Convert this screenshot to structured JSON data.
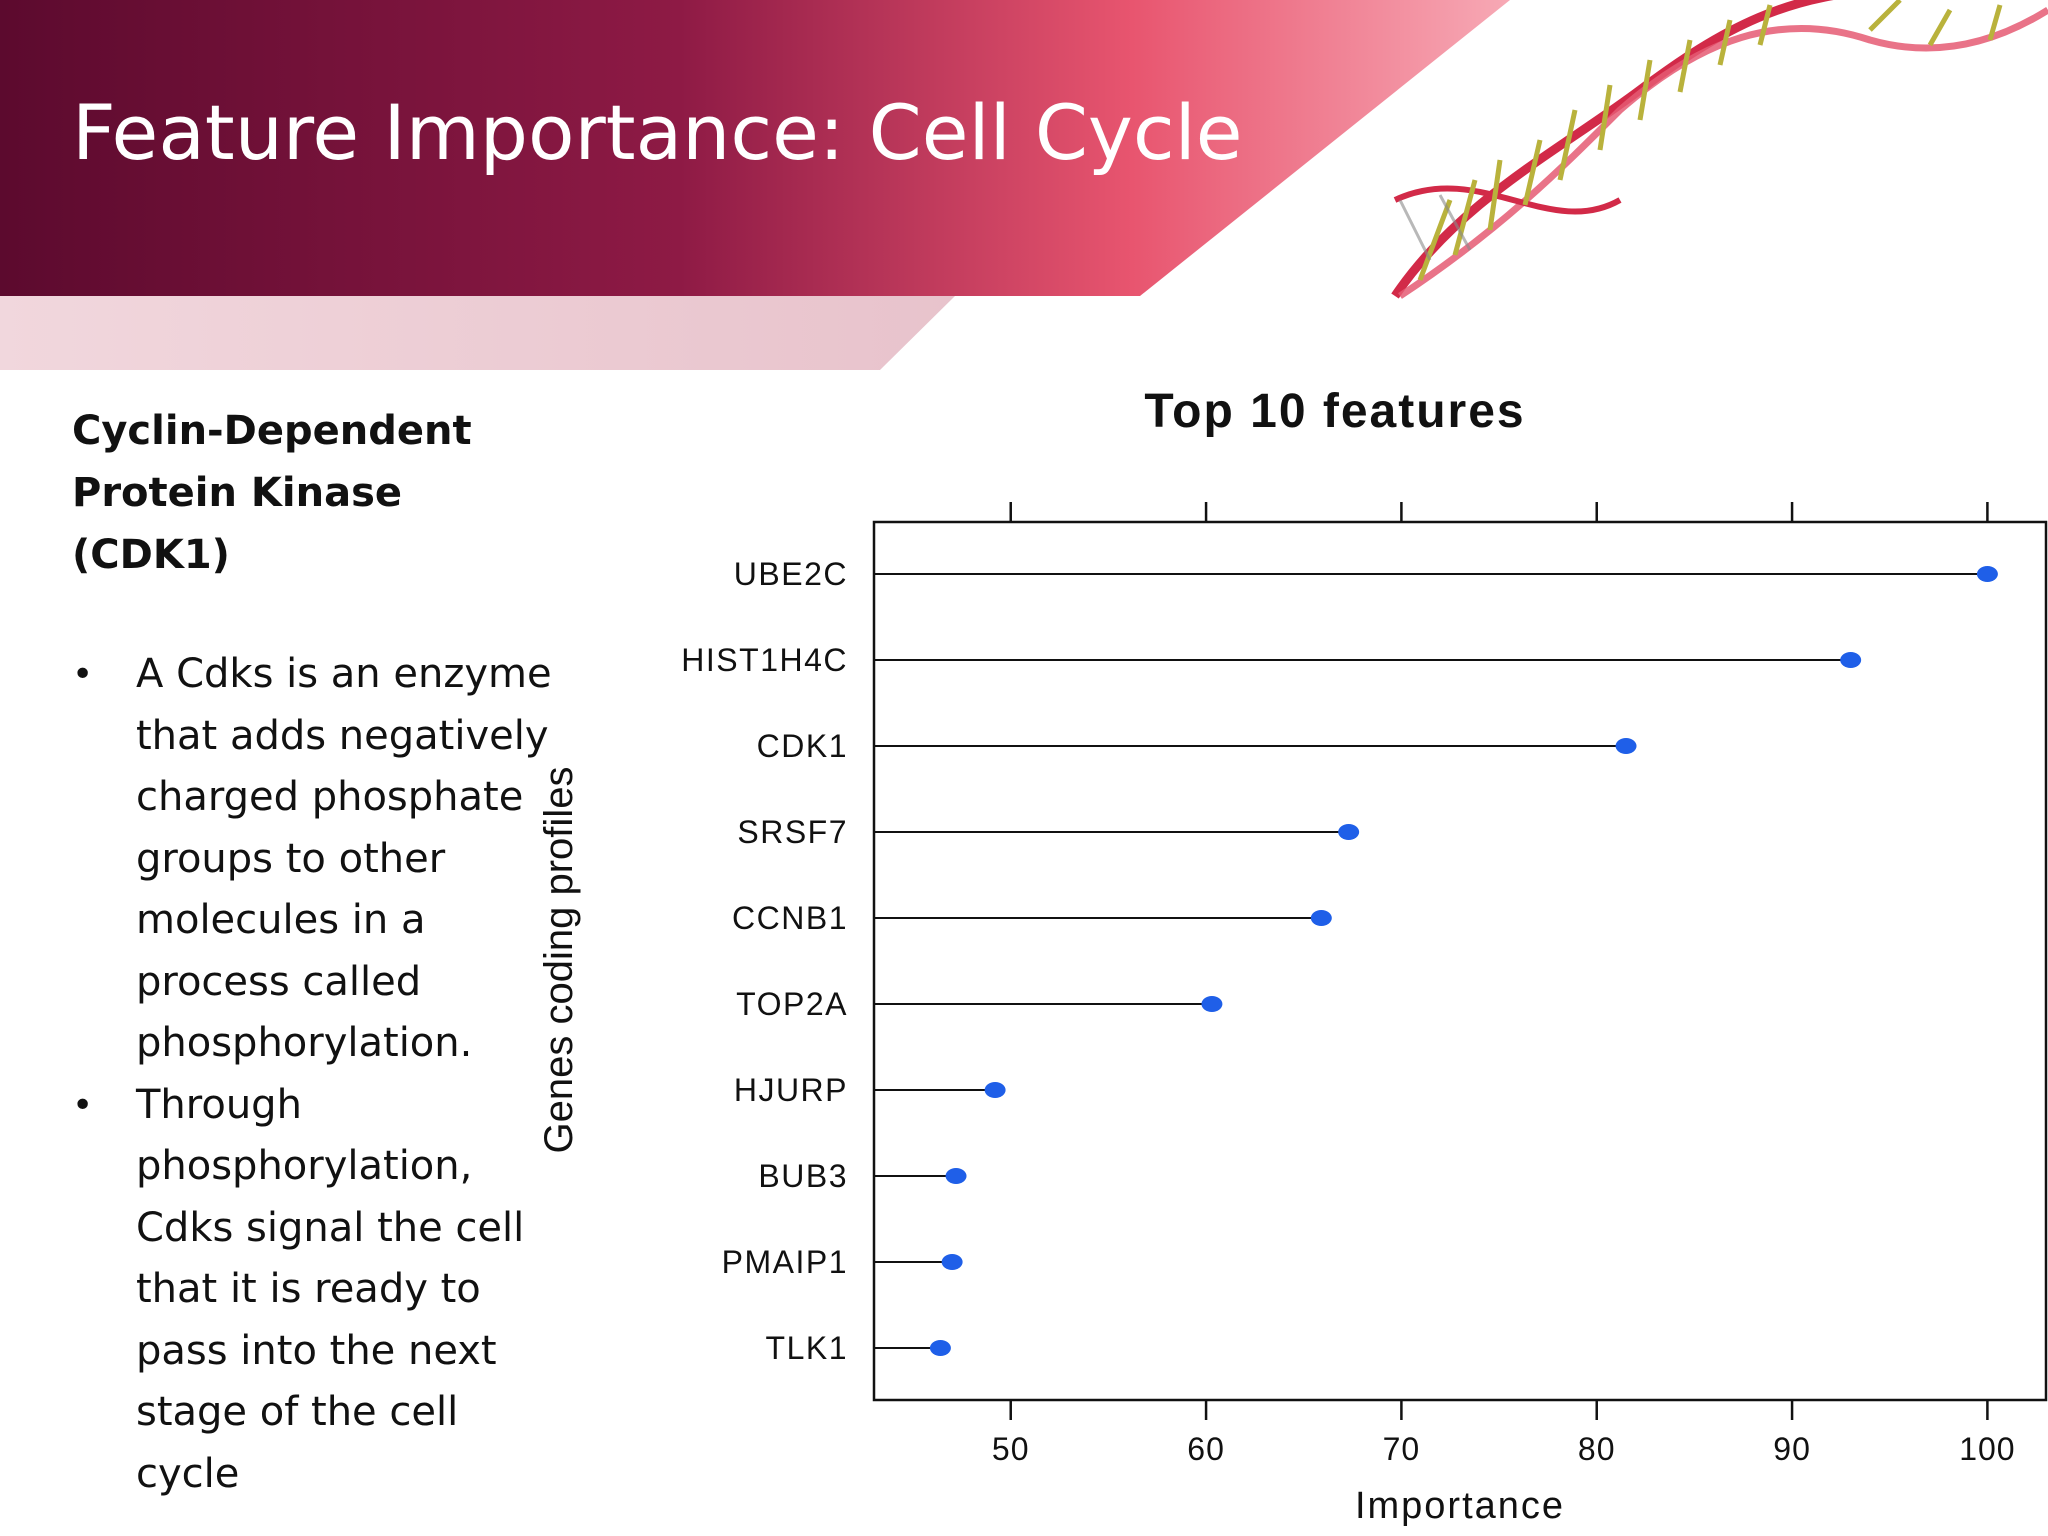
{
  "slide": {
    "title": "Feature Importance: Cell Cycle",
    "subtitle_line1": "Cyclin-Dependent",
    "subtitle_line2": "Protein Kinase (CDK1)",
    "bullets": [
      "A Cdks is an enzyme that adds negatively charged phosphate groups to other molecules in a process called phosphorylation.",
      "Through phosphorylation, Cdks signal the cell that it is ready to pass into the next stage of the cell cycle"
    ],
    "bullet_symbol": "•"
  },
  "colors": {
    "header_dark": "#5c0a2e",
    "header_mid": "#9a1f4a",
    "header_light": "#e8556f",
    "point": "#1f5fe8",
    "stem": "#111111"
  },
  "chart_data": {
    "type": "dot",
    "title": "Top 10 features",
    "xlabel": "Importance",
    "ylabel": "Genes coding profiles",
    "categories": [
      "UBE2C",
      "HIST1H4C",
      "CDK1",
      "SRSF7",
      "CCNB1",
      "TOP2A",
      "HJURP",
      "BUB3",
      "PMAIP1",
      "TLK1"
    ],
    "values": [
      100,
      93,
      81.5,
      67.3,
      65.9,
      60.3,
      49.2,
      47.2,
      47.0,
      46.4
    ],
    "xlim": [
      43,
      103
    ],
    "xticks": [
      50,
      60,
      70,
      80,
      90,
      100
    ],
    "grid": false,
    "legend": "none"
  }
}
